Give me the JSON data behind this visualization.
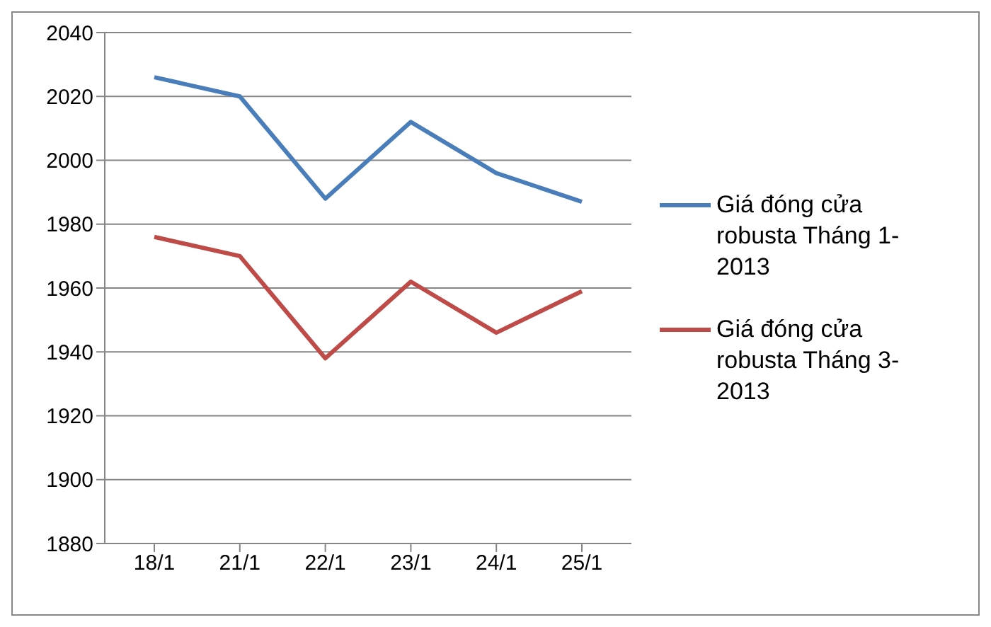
{
  "chart_data": {
    "type": "line",
    "categories": [
      "18/1",
      "21/1",
      "22/1",
      "23/1",
      "24/1",
      "25/1"
    ],
    "series": [
      {
        "name": "Giá đóng cửa robusta Tháng 1-2013",
        "color": "#4a7ebb",
        "values": [
          2026,
          2020,
          1988,
          2012,
          1996,
          1987
        ]
      },
      {
        "name": "Giá đóng cửa robusta Tháng 3-2013",
        "color": "#be4b48",
        "values": [
          1976,
          1970,
          1938,
          1962,
          1946,
          1959
        ]
      }
    ],
    "ylim": [
      1880,
      2040
    ],
    "yticks": [
      1880,
      1900,
      1920,
      1940,
      1960,
      1980,
      2000,
      2020,
      2040
    ],
    "grid": "y",
    "legend": "right",
    "marker": "none",
    "line_style": "solid"
  }
}
